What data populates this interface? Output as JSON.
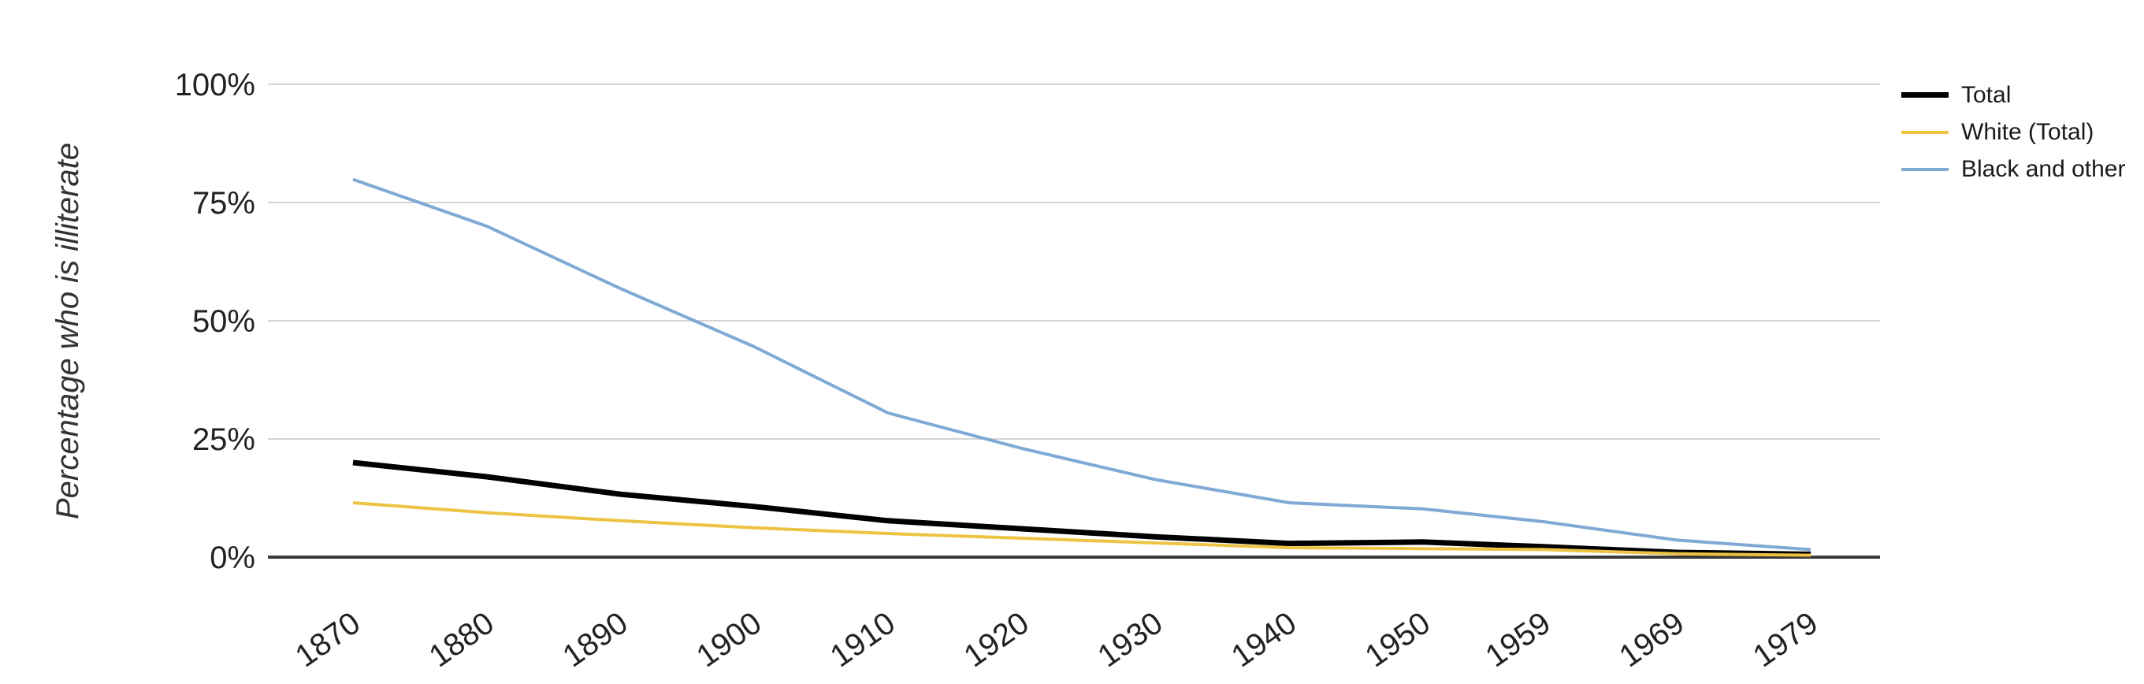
{
  "chart_data": {
    "type": "line",
    "title": "",
    "ylabel": "Percentage who is illiterate",
    "xlabel": "",
    "x": [
      "1870",
      "1880",
      "1890",
      "1900",
      "1910",
      "1920",
      "1930",
      "1940",
      "1950",
      "1959",
      "1969",
      "1979"
    ],
    "y_ticks": [
      "0%",
      "25%",
      "50%",
      "75%",
      "100%"
    ],
    "ylim": [
      0,
      100
    ],
    "grid": "horizontal",
    "legend_position": "top-right",
    "series": [
      {
        "name": "Total",
        "color": "#000000",
        "line_width": 7,
        "values": [
          20.0,
          17.0,
          13.3,
          10.7,
          7.7,
          6.0,
          4.3,
          2.9,
          3.2,
          2.2,
          1.0,
          0.6
        ]
      },
      {
        "name": "White (Total)",
        "color": "#ecc343",
        "line_width": 4,
        "values": [
          11.5,
          9.4,
          7.7,
          6.2,
          5.0,
          4.0,
          3.0,
          2.0,
          1.8,
          1.6,
          0.7,
          0.4
        ]
      },
      {
        "name": "Black and other",
        "color": "#7faad5",
        "line_width": 4,
        "values": [
          79.9,
          70.0,
          56.8,
          44.5,
          30.5,
          23.0,
          16.4,
          11.5,
          10.2,
          7.5,
          3.6,
          1.6
        ]
      }
    ],
    "colors": {
      "grid": "#d4d4d4",
      "axis": "#3a3a3a",
      "tick_text": "#222222",
      "axis_label_text": "#333333"
    }
  }
}
